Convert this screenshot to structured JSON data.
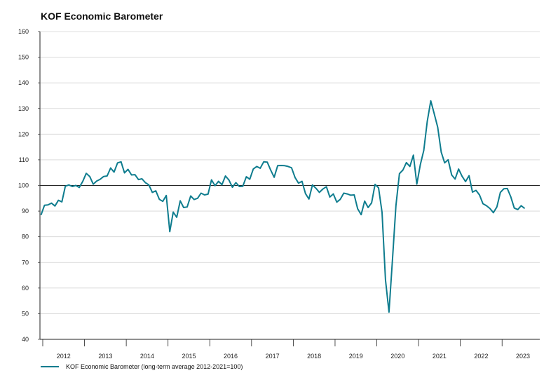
{
  "chart_data": {
    "type": "line",
    "title": "KOF Economic Barometer",
    "xlabel": "",
    "ylabel": "",
    "ylim": [
      40,
      160
    ],
    "yticks": [
      40,
      50,
      60,
      70,
      80,
      90,
      100,
      110,
      120,
      130,
      140,
      150,
      160
    ],
    "reference_line": 100,
    "grid": true,
    "legend_position": "bottom-left",
    "year_labels": [
      "2012",
      "2013",
      "2014",
      "2015",
      "2016",
      "2017",
      "2018",
      "2019",
      "2020",
      "2021",
      "2022",
      "2023"
    ],
    "x_start": "2011-12",
    "series": [
      {
        "name": "KOF Economic Barometer (long-term average 2012-2021=100)",
        "color": "#0e7c8e",
        "values": [
          88.5,
          92.3,
          92.4,
          93.1,
          92.0,
          94.2,
          93.6,
          99.7,
          100.2,
          99.6,
          100.0,
          99.2,
          101.6,
          104.7,
          103.5,
          100.5,
          101.7,
          102.4,
          103.5,
          103.7,
          106.8,
          105.2,
          108.8,
          109.2,
          104.9,
          106.3,
          104.1,
          104.2,
          102.3,
          102.6,
          101.1,
          100.2,
          97.3,
          97.9,
          94.6,
          93.8,
          96.1,
          82.0,
          89.6,
          87.6,
          94.0,
          91.4,
          91.6,
          95.9,
          94.5,
          95.0,
          97.0,
          96.3,
          96.6,
          102.2,
          99.9,
          101.6,
          100.3,
          103.7,
          102.1,
          99.3,
          101.1,
          99.6,
          99.7,
          103.4,
          102.4,
          106.4,
          107.4,
          106.7,
          109.2,
          109.1,
          106.0,
          103.2,
          107.7,
          107.8,
          107.7,
          107.4,
          106.9,
          103.1,
          100.9,
          101.6,
          96.8,
          94.7,
          100.2,
          98.9,
          97.3,
          98.6,
          99.5,
          95.5,
          96.7,
          93.5,
          94.6,
          97.0,
          96.7,
          96.2,
          96.3,
          90.9,
          88.6,
          93.9,
          91.4,
          93.2,
          100.4,
          99.1,
          89.5,
          63.2,
          50.6,
          71.2,
          92.1,
          104.6,
          106.0,
          108.9,
          107.4,
          111.8,
          100.5,
          108.1,
          113.6,
          125.0,
          133.0,
          128.0,
          122.7,
          113.0,
          108.8,
          110.0,
          104.1,
          102.5,
          106.4,
          103.6,
          101.5,
          103.8,
          97.4,
          98.1,
          96.3,
          92.9,
          92.1,
          91.0,
          89.4,
          91.6,
          97.3,
          98.7,
          98.8,
          95.6,
          91.2,
          90.6,
          92.1,
          91.0
        ]
      }
    ]
  }
}
